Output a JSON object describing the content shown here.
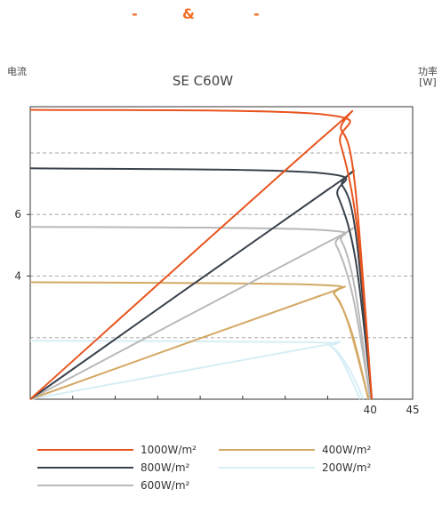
{
  "header": {
    "left": "-",
    "middle": "&",
    "right": "-"
  },
  "chart_data": {
    "type": "line",
    "title": "SE  C60W",
    "ylabel_left": "电流",
    "ylabel_right": "功率\n[W]",
    "xlim": [
      0,
      45
    ],
    "ylim": [
      0,
      9.5
    ],
    "xticks": [
      40,
      45
    ],
    "yticks": [
      4,
      6
    ],
    "grid_y": [
      2,
      4,
      6,
      8
    ],
    "series": [
      {
        "name": "1000W/m²",
        "color": "#e8541e",
        "current": [
          [
            0,
            9.4
          ],
          [
            34.5,
            9.25
          ],
          [
            36.5,
            8.3
          ],
          [
            38.5,
            5.5
          ],
          [
            40.2,
            0
          ]
        ],
        "power": [
          [
            0,
            0
          ],
          [
            34.8,
            8.6
          ],
          [
            36.6,
            8.75
          ],
          [
            38.2,
            7.0
          ],
          [
            40.2,
            0
          ]
        ]
      },
      {
        "name": "800W/m²",
        "color": "#3a424c",
        "current": [
          [
            0,
            7.5
          ],
          [
            34.0,
            7.35
          ],
          [
            36.2,
            6.6
          ],
          [
            38.3,
            4.5
          ],
          [
            40.2,
            0
          ]
        ],
        "power": [
          [
            0,
            0
          ],
          [
            35.0,
            6.8
          ],
          [
            36.7,
            6.95
          ],
          [
            38.3,
            5.4
          ],
          [
            40.2,
            0
          ]
        ]
      },
      {
        "name": "600W/m²",
        "color": "#b9b9b9",
        "current": [
          [
            0,
            5.6
          ],
          [
            34.0,
            5.5
          ],
          [
            36.0,
            5.0
          ],
          [
            38.0,
            3.3
          ],
          [
            40.0,
            0
          ]
        ],
        "power": [
          [
            0,
            0
          ],
          [
            35.0,
            5.1
          ],
          [
            36.6,
            5.15
          ],
          [
            38.2,
            3.6
          ],
          [
            40.0,
            0
          ]
        ]
      },
      {
        "name": "400W/m²",
        "color": "#d4a964",
        "current": [
          [
            0,
            3.8
          ],
          [
            33.5,
            3.72
          ],
          [
            35.8,
            3.4
          ],
          [
            37.8,
            2.2
          ],
          [
            39.8,
            0
          ]
        ],
        "power": [
          [
            0,
            0
          ],
          [
            34.0,
            3.35
          ],
          [
            35.8,
            3.4
          ],
          [
            37.5,
            2.4
          ],
          [
            39.8,
            0
          ]
        ]
      },
      {
        "name": "200W/m²",
        "color": "#d6eef6",
        "current": [
          [
            0,
            1.9
          ],
          [
            33.0,
            1.85
          ],
          [
            35.5,
            1.7
          ],
          [
            37.5,
            1.0
          ],
          [
            39.2,
            0
          ]
        ],
        "power": [
          [
            0,
            0
          ],
          [
            33.5,
            1.7
          ],
          [
            35.2,
            1.75
          ],
          [
            36.8,
            1.2
          ],
          [
            38.8,
            0
          ]
        ]
      }
    ]
  }
}
